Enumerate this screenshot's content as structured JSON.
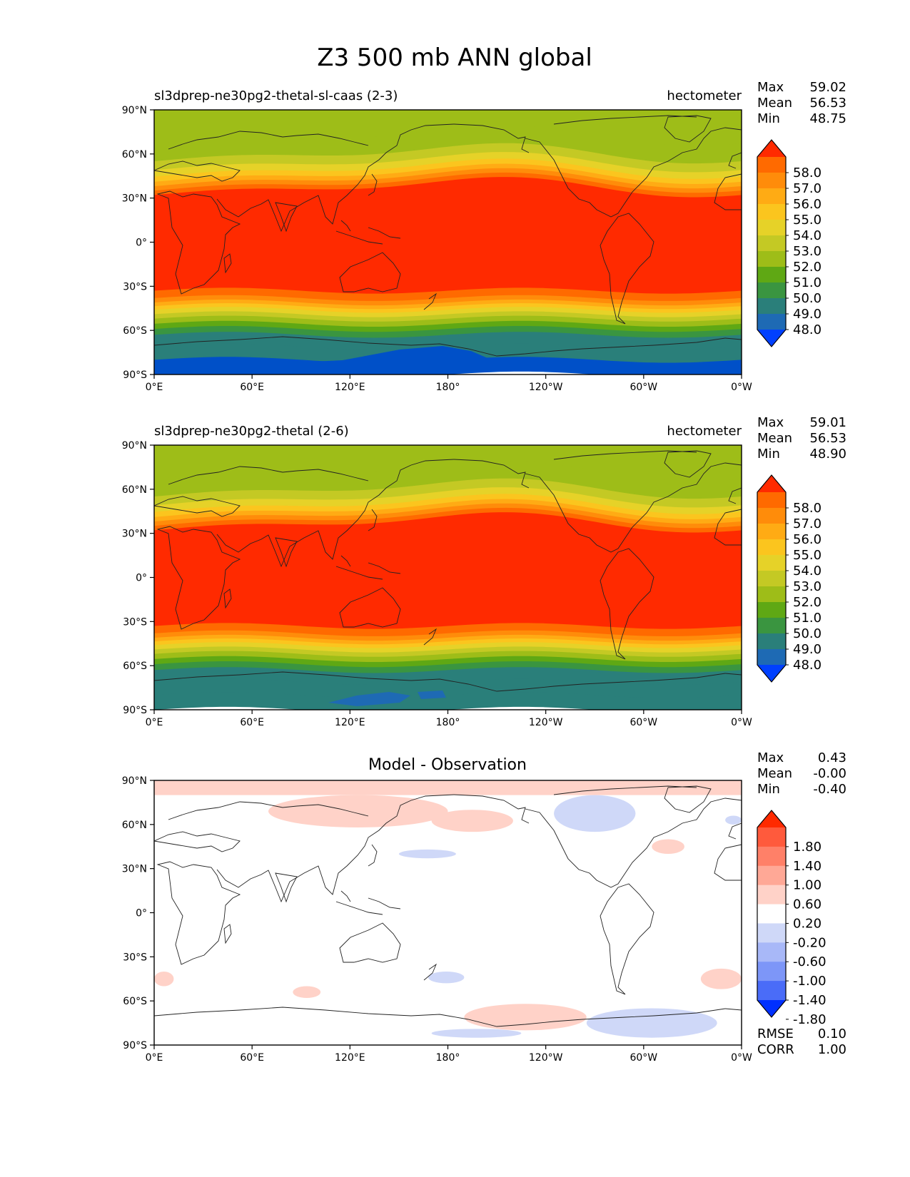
{
  "title": "Z3 500 mb ANN global",
  "x_ticks": [
    "0°E",
    "60°E",
    "120°E",
    "180°",
    "120°W",
    "60°W",
    "0°W"
  ],
  "y_ticks": [
    "90°N",
    "60°N",
    "30°N",
    "0°",
    "30°S",
    "60°S",
    "90°S"
  ],
  "panels": [
    {
      "title_left": "sl3dprep-ne30pg2-thetal-sl-caas (2-3)",
      "title_center": "",
      "units": "hectometer",
      "stats": [
        {
          "label": "Max",
          "value": "59.02"
        },
        {
          "label": "Mean",
          "value": "56.53"
        },
        {
          "label": "Min",
          "value": "48.75"
        }
      ],
      "bottom_stats": [],
      "colorbar": {
        "ticks": [
          "58.0",
          "57.0",
          "56.0",
          "55.0",
          "54.0",
          "53.0",
          "52.0",
          "51.0",
          "50.0",
          "49.0",
          "48.0"
        ],
        "colors_top_to_bottom": [
          "#ff2a00",
          "#ff6a00",
          "#ff8c0a",
          "#ffab14",
          "#fbc51e",
          "#e6d228",
          "#c4c924",
          "#9ebd18",
          "#5fa814",
          "#3a9540",
          "#2a7f7a",
          "#1e6ab4",
          "#0050e6"
        ],
        "arrow_top": "#ff2a00",
        "arrow_bottom": "#0040ff"
      },
      "band_colors_south_to_north": [
        "#0050c8",
        "#2a7f7a",
        "#2a7f7a",
        "#3a9540",
        "#5fa814",
        "#9ebd18",
        "#c4c924",
        "#e6d228",
        "#fbc51e",
        "#ffab14",
        "#ff8c0a",
        "#ff6a00",
        "#ff2a00",
        "#ff2a00",
        "#ff6a00",
        "#ff8c0a",
        "#ffab14",
        "#fbc51e",
        "#e6d228",
        "#c4c924",
        "#9ebd18",
        "#9ebd18"
      ]
    },
    {
      "title_left": "sl3dprep-ne30pg2-thetal (2-6)",
      "title_center": "",
      "units": "hectometer",
      "stats": [
        {
          "label": "Max",
          "value": "59.01"
        },
        {
          "label": "Mean",
          "value": "56.53"
        },
        {
          "label": "Min",
          "value": "48.90"
        }
      ],
      "bottom_stats": [],
      "colorbar": {
        "ticks": [
          "58.0",
          "57.0",
          "56.0",
          "55.0",
          "54.0",
          "53.0",
          "52.0",
          "51.0",
          "50.0",
          "49.0",
          "48.0"
        ],
        "colors_top_to_bottom": [
          "#ff2a00",
          "#ff6a00",
          "#ff8c0a",
          "#ffab14",
          "#fbc51e",
          "#e6d228",
          "#c4c924",
          "#9ebd18",
          "#5fa814",
          "#3a9540",
          "#2a7f7a",
          "#1e6ab4",
          "#0050e6"
        ],
        "arrow_top": "#ff2a00",
        "arrow_bottom": "#0040ff"
      },
      "band_colors_south_to_north": [
        "#2a7f7a",
        "#2a7f7a",
        "#2a7f7a",
        "#3a9540",
        "#5fa814",
        "#9ebd18",
        "#c4c924",
        "#e6d228",
        "#fbc51e",
        "#ffab14",
        "#ff8c0a",
        "#ff6a00",
        "#ff2a00",
        "#ff2a00",
        "#ff6a00",
        "#ff8c0a",
        "#ffab14",
        "#fbc51e",
        "#e6d228",
        "#c4c924",
        "#9ebd18",
        "#9ebd18"
      ]
    },
    {
      "title_left": "",
      "title_center": "Model - Observation",
      "units": "",
      "stats": [
        {
          "label": "Max",
          "value": "0.43"
        },
        {
          "label": "Mean",
          "value": "-0.00"
        },
        {
          "label": "Min",
          "value": "-0.40"
        }
      ],
      "bottom_stats": [
        {
          "label": "RMSE",
          "value": "0.10"
        },
        {
          "label": "CORR",
          "value": "1.00"
        }
      ],
      "colorbar": {
        "ticks": [
          "1.80",
          "1.40",
          "1.00",
          "0.60",
          "0.20",
          "-0.20",
          "-0.60",
          "-1.00",
          "-1.40",
          "-1.80"
        ],
        "colors_top_to_bottom": [
          "#ff2a00",
          "#ff5a3c",
          "#ff8068",
          "#ffa896",
          "#ffd2c8",
          "#ffffff",
          "#cfd8f8",
          "#a8b8f8",
          "#7d96f8",
          "#4a6cf8",
          "#1a46ff"
        ],
        "arrow_top": "#ff2a00",
        "arrow_bottom": "#0030ff"
      }
    }
  ],
  "chart_data": [
    {
      "type": "heatmap",
      "title": "sl3dprep-ne30pg2-thetal-sl-caas (2-3)",
      "units": "hectometer",
      "xlabel": "",
      "ylabel": "",
      "x_ticks": [
        "0°E",
        "60°E",
        "120°E",
        "180°",
        "120°W",
        "60°W",
        "0°W"
      ],
      "y_ticks": [
        "90°N",
        "60°N",
        "30°N",
        "0°",
        "30°S",
        "60°S",
        "90°S"
      ],
      "xlim": [
        0,
        360
      ],
      "ylim": [
        -90,
        90
      ],
      "contour_levels": [
        48,
        49,
        50,
        51,
        52,
        53,
        54,
        55,
        56,
        57,
        58
      ],
      "zonal_profile": {
        "lat": [
          -90,
          -80,
          -70,
          -60,
          -50,
          -40,
          -30,
          -20,
          -10,
          0,
          10,
          20,
          30,
          40,
          50,
          60,
          70,
          80,
          90
        ],
        "value": [
          48.8,
          49.5,
          50.2,
          51.6,
          53.6,
          55.6,
          57.5,
          58.4,
          58.7,
          58.8,
          58.7,
          58.5,
          57.9,
          56.3,
          54.6,
          53.3,
          52.6,
          52.2,
          52.0
        ]
      },
      "max": 59.02,
      "mean": 56.53,
      "min": 48.75
    },
    {
      "type": "heatmap",
      "title": "sl3dprep-ne30pg2-thetal (2-6)",
      "units": "hectometer",
      "xlabel": "",
      "ylabel": "",
      "x_ticks": [
        "0°E",
        "60°E",
        "120°E",
        "180°",
        "120°W",
        "60°W",
        "0°W"
      ],
      "y_ticks": [
        "90°N",
        "60°N",
        "30°N",
        "0°",
        "30°S",
        "60°S",
        "90°S"
      ],
      "xlim": [
        0,
        360
      ],
      "ylim": [
        -90,
        90
      ],
      "contour_levels": [
        48,
        49,
        50,
        51,
        52,
        53,
        54,
        55,
        56,
        57,
        58
      ],
      "zonal_profile": {
        "lat": [
          -90,
          -80,
          -70,
          -60,
          -50,
          -40,
          -30,
          -20,
          -10,
          0,
          10,
          20,
          30,
          40,
          50,
          60,
          70,
          80,
          90
        ],
        "value": [
          49.0,
          49.5,
          50.2,
          51.6,
          53.6,
          55.6,
          57.5,
          58.4,
          58.7,
          58.8,
          58.7,
          58.5,
          57.9,
          56.3,
          54.6,
          53.3,
          52.6,
          52.2,
          52.0
        ]
      },
      "max": 59.01,
      "mean": 56.53,
      "min": 48.9
    },
    {
      "type": "heatmap",
      "title": "Model - Observation",
      "units": "",
      "xlabel": "",
      "ylabel": "",
      "x_ticks": [
        "0°E",
        "60°E",
        "120°E",
        "180°",
        "120°W",
        "60°W",
        "0°W"
      ],
      "y_ticks": [
        "90°N",
        "60°N",
        "30°N",
        "0°",
        "30°S",
        "60°S",
        "90°S"
      ],
      "xlim": [
        0,
        360
      ],
      "ylim": [
        -90,
        90
      ],
      "contour_levels": [
        -1.8,
        -1.4,
        -1.0,
        -0.6,
        -0.2,
        0.2,
        0.6,
        1.0,
        1.4,
        1.8
      ],
      "anomaly_regions": [
        {
          "sign": "positive",
          "lon": [
            0,
            360
          ],
          "lat": [
            80,
            90
          ]
        },
        {
          "sign": "positive",
          "lon": [
            70,
            180
          ],
          "lat": [
            58,
            80
          ]
        },
        {
          "sign": "positive",
          "lon": [
            170,
            220
          ],
          "lat": [
            55,
            70
          ]
        },
        {
          "sign": "positive",
          "lon": [
            305,
            325
          ],
          "lat": [
            40,
            50
          ]
        },
        {
          "sign": "positive",
          "lon": [
            0,
            12
          ],
          "lat": [
            -50,
            -40
          ]
        },
        {
          "sign": "positive",
          "lon": [
            335,
            360
          ],
          "lat": [
            -52,
            -38
          ]
        },
        {
          "sign": "positive",
          "lon": [
            85,
            102
          ],
          "lat": [
            -58,
            -50
          ]
        },
        {
          "sign": "positive",
          "lon": [
            190,
            265
          ],
          "lat": [
            -80,
            -62
          ]
        },
        {
          "sign": "negative",
          "lon": [
            245,
            295
          ],
          "lat": [
            55,
            80
          ]
        },
        {
          "sign": "negative",
          "lon": [
            150,
            185
          ],
          "lat": [
            37,
            43
          ]
        },
        {
          "sign": "negative",
          "lon": [
            168,
            190
          ],
          "lat": [
            -48,
            -40
          ]
        },
        {
          "sign": "negative",
          "lon": [
            170,
            225
          ],
          "lat": [
            -85,
            -79
          ]
        },
        {
          "sign": "negative",
          "lon": [
            265,
            345
          ],
          "lat": [
            -85,
            -65
          ]
        },
        {
          "sign": "negative",
          "lon": [
            350,
            360
          ],
          "lat": [
            60,
            66
          ]
        }
      ],
      "max": 0.43,
      "mean": -0.0,
      "min": -0.4,
      "rmse": 0.1,
      "corr": 1.0
    }
  ]
}
